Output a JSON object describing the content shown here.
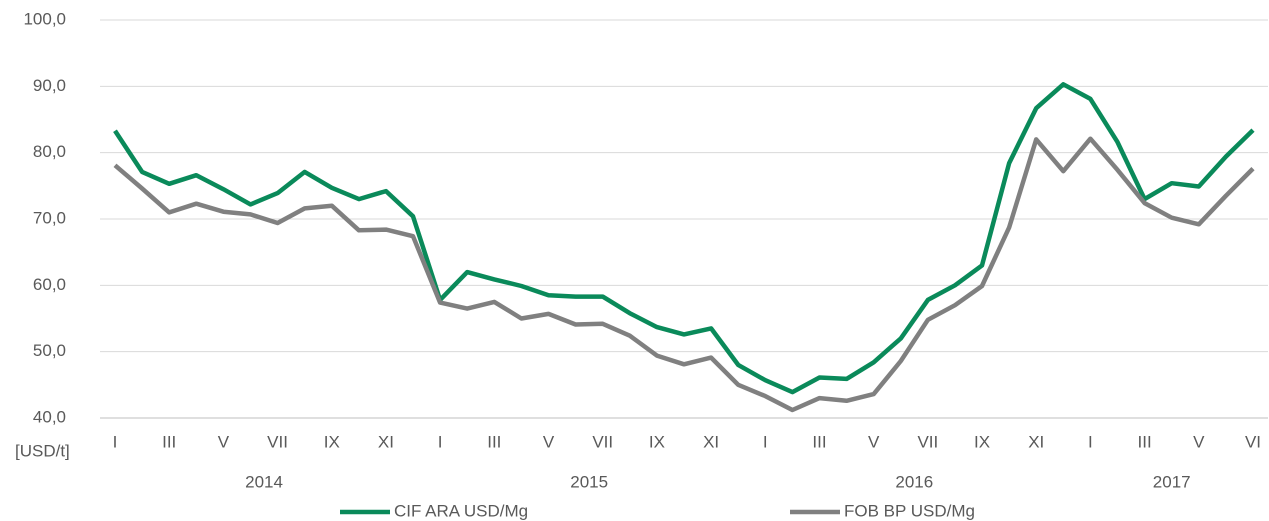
{
  "chart_data": {
    "type": "line",
    "y_label": "[USD/t]",
    "categories": [
      "I",
      null,
      "III",
      null,
      "V",
      null,
      "VII",
      null,
      "IX",
      null,
      "XI",
      null,
      "I",
      null,
      "III",
      null,
      "V",
      null,
      "VII",
      null,
      "IX",
      null,
      "XI",
      null,
      "I",
      null,
      "III",
      null,
      "V",
      null,
      "VII",
      null,
      "IX",
      null,
      "XI",
      null,
      "I",
      null,
      "III",
      null,
      "V",
      null,
      "VI"
    ],
    "years": [
      "2014",
      "2015",
      "2016",
      "2017"
    ],
    "series": [
      {
        "name": "CIF ARA USD/Mg",
        "color": "#0a8a5a",
        "values": [
          83.3,
          77.1,
          75.3,
          76.6,
          74.5,
          72.2,
          73.9,
          77.1,
          74.7,
          73.0,
          74.2,
          70.4,
          57.8,
          62.0,
          60.9,
          59.9,
          58.5,
          58.3,
          58.3,
          55.8,
          53.7,
          52.6,
          53.5,
          48.0,
          45.7,
          43.9,
          46.1,
          45.9,
          48.4,
          52.0,
          57.8,
          60.0,
          63.0,
          78.4,
          86.7,
          90.3,
          88.1,
          81.6,
          73.0,
          75.4,
          74.9,
          79.4,
          83.4
        ]
      },
      {
        "name": "FOB BP USD/Mg",
        "color": "#808080",
        "values": [
          78.1,
          74.6,
          71.0,
          72.3,
          71.1,
          70.7,
          69.4,
          71.6,
          72.0,
          68.3,
          68.4,
          67.4,
          57.4,
          56.5,
          57.5,
          55.0,
          55.7,
          54.1,
          54.2,
          52.4,
          49.4,
          48.1,
          49.1,
          45.0,
          43.3,
          41.2,
          43.0,
          42.6,
          43.6,
          48.6,
          54.8,
          57.0,
          59.9,
          68.7,
          82.0,
          77.2,
          82.1,
          77.4,
          72.4,
          70.2,
          69.2,
          73.5,
          77.6
        ]
      }
    ],
    "ylim": [
      40,
      100
    ],
    "yticks": [
      {
        "value": 40,
        "label": "40,0"
      },
      {
        "value": 50,
        "label": "50,0"
      },
      {
        "value": 60,
        "label": "60,0"
      },
      {
        "value": 70,
        "label": "70,0"
      },
      {
        "value": 80,
        "label": "80,0"
      },
      {
        "value": 90,
        "label": "90,0"
      },
      {
        "value": 100,
        "label": "100,0"
      }
    ],
    "grid": true
  }
}
